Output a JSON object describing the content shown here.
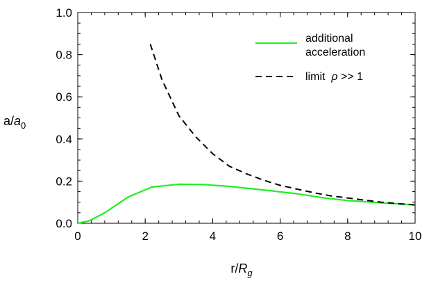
{
  "chart_data": {
    "type": "line",
    "title": "",
    "xlabel_main": "r/",
    "xlabel_sym": "R",
    "xlabel_sub": "g",
    "ylabel_main": "a/",
    "ylabel_sym": "a",
    "ylabel_sub": "0",
    "xlim": [
      0,
      10
    ],
    "ylim": [
      0,
      1
    ],
    "x_ticks": [
      "0",
      "2",
      "4",
      "6",
      "8",
      "10"
    ],
    "y_ticks": [
      "0.0",
      "0.2",
      "0.4",
      "0.6",
      "0.8",
      "1.0"
    ],
    "grid": false,
    "legend_position": "top-right",
    "series": [
      {
        "name_line1": "additional",
        "name_line2": "acceleration",
        "color": "#22ee22",
        "dash": "solid",
        "points": [
          [
            0,
            0
          ],
          [
            0.35,
            0.012
          ],
          [
            0.8,
            0.05
          ],
          [
            1.5,
            0.125
          ],
          [
            2.2,
            0.172
          ],
          [
            3.0,
            0.185
          ],
          [
            3.7,
            0.184
          ],
          [
            4.5,
            0.175
          ],
          [
            5.5,
            0.158
          ],
          [
            6.5,
            0.14
          ],
          [
            7.3,
            0.12
          ],
          [
            8.0,
            0.108
          ],
          [
            9.0,
            0.097
          ],
          [
            10.0,
            0.087
          ]
        ]
      },
      {
        "name_prefix": "limit  ",
        "name_sym": "ρ",
        "name_suffix": " >> 1",
        "color": "#000000",
        "dash": "dashed",
        "points": [
          [
            2.15,
            0.85
          ],
          [
            2.5,
            0.68
          ],
          [
            3.0,
            0.51
          ],
          [
            3.5,
            0.41
          ],
          [
            4.0,
            0.33
          ],
          [
            4.5,
            0.27
          ],
          [
            5.0,
            0.235
          ],
          [
            5.5,
            0.205
          ],
          [
            6.0,
            0.18
          ],
          [
            6.5,
            0.162
          ],
          [
            7.0,
            0.145
          ],
          [
            7.5,
            0.13
          ],
          [
            8.0,
            0.12
          ],
          [
            8.5,
            0.11
          ],
          [
            9.0,
            0.1
          ],
          [
            9.5,
            0.093
          ],
          [
            10.0,
            0.087
          ]
        ]
      }
    ]
  }
}
